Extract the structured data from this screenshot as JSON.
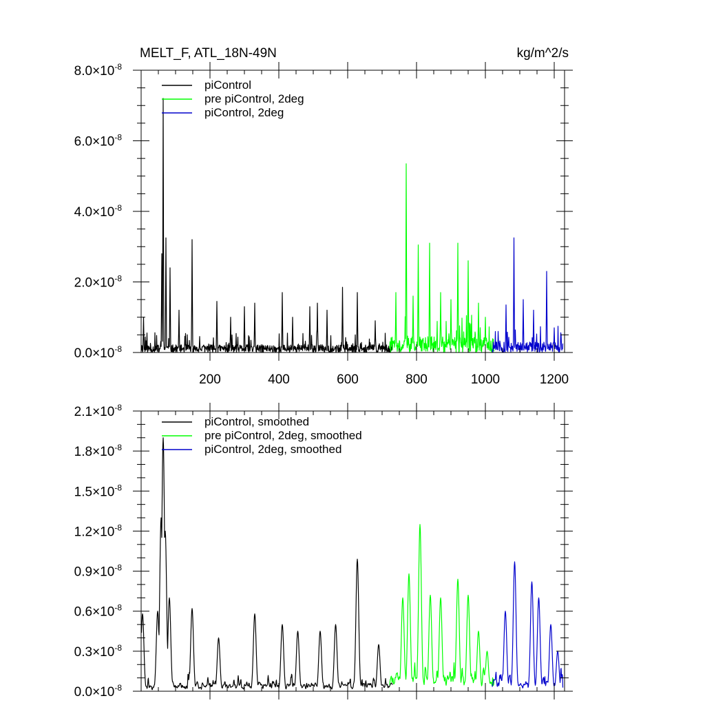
{
  "chart_data": [
    {
      "type": "line",
      "title": "MELT_F, ATL_18N-49N",
      "units": "kg/m^2/s",
      "xlim": [
        0,
        1230
      ],
      "ylim": [
        0,
        8e-08
      ],
      "x_ticks": [
        200,
        400,
        600,
        800,
        1000,
        1200
      ],
      "y_ticks": [
        {
          "mantissa": "0.0",
          "exp": "-8",
          "value": 0
        },
        {
          "mantissa": "2.0",
          "exp": "-8",
          "value": 2e-08
        },
        {
          "mantissa": "4.0",
          "exp": "-8",
          "value": 4e-08
        },
        {
          "mantissa": "6.0",
          "exp": "-8",
          "value": 6e-08
        },
        {
          "mantissa": "8.0",
          "exp": "-8",
          "value": 8e-08
        }
      ],
      "y_times_symbol": "×10",
      "grid": false,
      "legend_position": "top-left",
      "series": [
        {
          "name": "piControl",
          "color": "#000000",
          "x_start": 1,
          "x_end": 730,
          "peaks": [
            [
              64,
              7.2e-08
            ],
            [
              60,
              2.8e-08
            ],
            [
              72,
              3.25e-08
            ],
            [
              84,
              2.4e-08
            ],
            [
              148,
              3.2e-08
            ],
            [
              220,
              1.45e-08
            ],
            [
              300,
              1.3e-08
            ],
            [
              330,
              1.4e-08
            ],
            [
              410,
              1.7e-08
            ],
            [
              490,
              1.3e-08
            ],
            [
              512,
              1.4e-08
            ],
            [
              585,
              1.85e-08
            ],
            [
              628,
              1.7e-08
            ],
            [
              7,
              1e-08
            ],
            [
              110,
              1.2e-08
            ],
            [
              260,
              1e-08
            ],
            [
              440,
              1e-08
            ],
            [
              540,
              1.2e-08
            ],
            [
              680,
              9e-09
            ]
          ],
          "base_level": 2.2e-09
        },
        {
          "name": "pre piControl, 2deg",
          "color": "#00ff00",
          "x_start": 722,
          "x_end": 1025,
          "peaks": [
            [
              770,
              5.35e-08
            ],
            [
              805,
              3.05e-08
            ],
            [
              838,
              3.1e-08
            ],
            [
              920,
              3.1e-08
            ],
            [
              950,
              2.6e-08
            ],
            [
              740,
              1.7e-08
            ],
            [
              790,
              1.6e-08
            ],
            [
              870,
              1.7e-08
            ],
            [
              900,
              1.5e-08
            ],
            [
              980,
              1.4e-08
            ],
            [
              1000,
              1e-08
            ]
          ],
          "base_level": 4.5e-09
        },
        {
          "name": "piControl, 2deg",
          "color": "#0000cc",
          "x_start": 1020,
          "x_end": 1225,
          "peaks": [
            [
              1083,
              3.25e-08
            ],
            [
              1178,
              2.3e-08
            ],
            [
              1060,
              1.35e-08
            ],
            [
              1110,
              1.5e-08
            ],
            [
              1140,
              1.2e-08
            ],
            [
              1200,
              7e-09
            ],
            [
              1220,
              5e-09
            ]
          ],
          "base_level": 3e-09
        }
      ]
    },
    {
      "type": "line",
      "title": "",
      "xlim": [
        0,
        1230
      ],
      "ylim": [
        0,
        2.1e-08
      ],
      "y_ticks": [
        {
          "mantissa": "0.0",
          "exp": "-8",
          "value": 0
        },
        {
          "mantissa": "0.3",
          "exp": "-8",
          "value": 3e-09
        },
        {
          "mantissa": "0.6",
          "exp": "-8",
          "value": 6e-09
        },
        {
          "mantissa": "0.9",
          "exp": "-8",
          "value": 9e-09
        },
        {
          "mantissa": "1.2",
          "exp": "-8",
          "value": 1.2e-08
        },
        {
          "mantissa": "1.5",
          "exp": "-8",
          "value": 1.5e-08
        },
        {
          "mantissa": "1.8",
          "exp": "-8",
          "value": 1.8e-08
        },
        {
          "mantissa": "2.1",
          "exp": "-8",
          "value": 2.1e-08
        }
      ],
      "y_times_symbol": "×10",
      "grid": false,
      "legend_position": "top-left",
      "series": [
        {
          "name": "piControl, smoothed",
          "color": "#000000",
          "x_start": 1,
          "x_end": 730,
          "peaks": [
            [
              64,
              1.9e-08
            ],
            [
              58,
              1.3e-08
            ],
            [
              70,
              1.2e-08
            ],
            [
              82,
              7e-09
            ],
            [
              4,
              5.8e-09
            ],
            [
              48,
              6e-09
            ],
            [
              148,
              6.2e-09
            ],
            [
              225,
              4e-09
            ],
            [
              330,
              5.8e-09
            ],
            [
              410,
              5e-09
            ],
            [
              455,
              4.5e-09
            ],
            [
              565,
              5e-09
            ],
            [
              628,
              9.9e-09
            ],
            [
              520,
              4.5e-09
            ],
            [
              690,
              3.5e-09
            ]
          ],
          "base_level": 9e-10
        },
        {
          "name": "pre piControl, 2deg, smoothed",
          "color": "#00ff00",
          "x_start": 722,
          "x_end": 1025,
          "peaks": [
            [
              810,
              1.25e-08
            ],
            [
              778,
              8.8e-09
            ],
            [
              920,
              8.4e-09
            ],
            [
              760,
              7e-09
            ],
            [
              840,
              7.2e-09
            ],
            [
              870,
              7e-09
            ],
            [
              950,
              7.2e-09
            ],
            [
              980,
              4.5e-09
            ],
            [
              1005,
              3e-09
            ]
          ],
          "base_level": 1.8e-09
        },
        {
          "name": "piControl, 2deg, smoothed",
          "color": "#0000cc",
          "x_start": 1020,
          "x_end": 1225,
          "peaks": [
            [
              1085,
              9.7e-09
            ],
            [
              1058,
              6e-09
            ],
            [
              1135,
              8.2e-09
            ],
            [
              1155,
              7e-09
            ],
            [
              1190,
              5e-09
            ],
            [
              1210,
              3e-09
            ]
          ],
          "base_level": 1.2e-09
        }
      ]
    }
  ]
}
